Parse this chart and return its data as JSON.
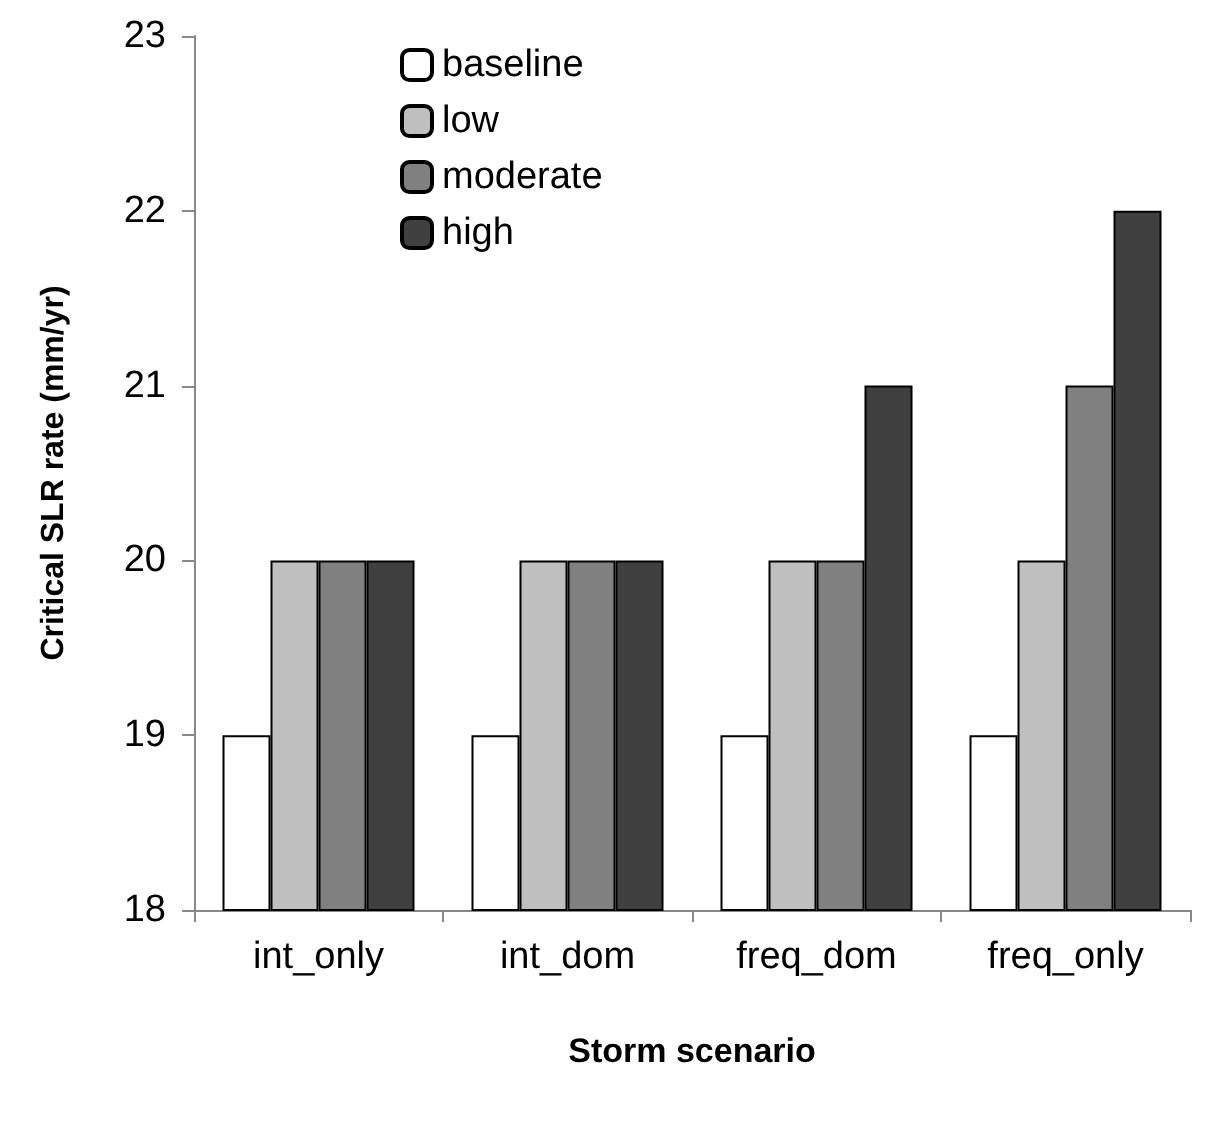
{
  "chart_data": {
    "type": "bar",
    "xlabel": "Storm scenario",
    "ylabel": "Critical SLR rate (mm/yr)",
    "categories": [
      "int_only",
      "int_dom",
      "freq_dom",
      "freq_only"
    ],
    "series": [
      {
        "name": "baseline",
        "color": "#ffffff",
        "values": [
          19,
          19,
          19,
          19
        ]
      },
      {
        "name": "low",
        "color": "#bfbfbf",
        "values": [
          20,
          20,
          20,
          20
        ]
      },
      {
        "name": "moderate",
        "color": "#808080",
        "values": [
          20,
          20,
          20,
          21
        ]
      },
      {
        "name": "high",
        "color": "#404040",
        "values": [
          20,
          20,
          21,
          22
        ]
      }
    ],
    "ylim": [
      18,
      23
    ],
    "yticks": [
      18,
      19,
      20,
      21,
      22,
      23
    ],
    "grid": false,
    "legend": "top left"
  }
}
